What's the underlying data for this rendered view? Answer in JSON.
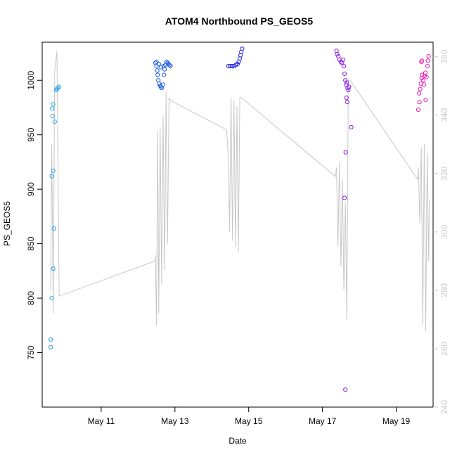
{
  "chart_data": {
    "type": "scatter",
    "title": "ATOM4 Northbound PS_GEOS5",
    "xlabel": "Date",
    "ylabel": "PS_GEOS5",
    "x_unit": "days of May (day number)",
    "xlim": [
      9.4,
      20.0
    ],
    "ylim": [
      700,
      1035
    ],
    "y2lim": [
      240,
      365
    ],
    "x_ticks": [
      {
        "value": 11,
        "label": "May 11"
      },
      {
        "value": 13,
        "label": "May 13"
      },
      {
        "value": 15,
        "label": "May 15"
      },
      {
        "value": 17,
        "label": "May 17"
      },
      {
        "value": 19,
        "label": "May 19"
      }
    ],
    "y_ticks": [
      750,
      800,
      850,
      900,
      950,
      1000
    ],
    "y2_ticks": [
      240,
      260,
      280,
      300,
      320,
      340,
      360
    ],
    "grid": false,
    "colors": {
      "flight1": "#29a6e6",
      "flight2": "#1f5fe0",
      "flight3": "#2626e0",
      "flight4": "#8a1ee6",
      "flight5": "#e61eb5",
      "line": "#c8c8c8",
      "right_axis": "#c8c8c8"
    },
    "series": [
      {
        "flight": 1,
        "points": [
          [
            9.63,
            755
          ],
          [
            9.63,
            762
          ],
          [
            9.66,
            800
          ],
          [
            9.7,
            827
          ],
          [
            9.72,
            864
          ],
          [
            9.66,
            912
          ],
          [
            9.7,
            917
          ],
          [
            9.68,
            967
          ],
          [
            9.74,
            962
          ],
          [
            9.67,
            974
          ],
          [
            9.7,
            978
          ],
          [
            9.78,
            991
          ],
          [
            9.8,
            992
          ],
          [
            9.82,
            993
          ],
          [
            9.86,
            994
          ]
        ]
      },
      {
        "flight": 2,
        "points": [
          [
            12.47,
            1016
          ],
          [
            12.5,
            1013
          ],
          [
            12.52,
            1009
          ],
          [
            12.53,
            1005
          ],
          [
            12.55,
            1000
          ],
          [
            12.57,
            997
          ],
          [
            12.6,
            995
          ],
          [
            12.62,
            994
          ],
          [
            12.64,
            993
          ],
          [
            12.68,
            996
          ],
          [
            12.7,
            1005
          ],
          [
            12.72,
            1010
          ],
          [
            12.74,
            1014
          ],
          [
            12.77,
            1017
          ],
          [
            12.8,
            1016
          ],
          [
            12.82,
            1015
          ],
          [
            12.85,
            1014
          ],
          [
            12.88,
            1013
          ],
          [
            12.5,
            1017
          ],
          [
            12.56,
            1015
          ],
          [
            12.62,
            1012
          ],
          [
            12.69,
            1013
          ]
        ]
      },
      {
        "flight": 3,
        "points": [
          [
            14.45,
            1013
          ],
          [
            14.5,
            1013
          ],
          [
            14.55,
            1013
          ],
          [
            14.6,
            1013
          ],
          [
            14.65,
            1014
          ],
          [
            14.7,
            1015
          ],
          [
            14.73,
            1017
          ],
          [
            14.76,
            1020
          ],
          [
            14.78,
            1023
          ],
          [
            14.8,
            1026
          ],
          [
            14.82,
            1029
          ]
        ]
      },
      {
        "flight": 4,
        "points": [
          [
            17.38,
            1027
          ],
          [
            17.4,
            1024
          ],
          [
            17.43,
            1022
          ],
          [
            17.46,
            1019
          ],
          [
            17.5,
            1017
          ],
          [
            17.53,
            1016
          ],
          [
            17.56,
            1019
          ],
          [
            17.58,
            1013
          ],
          [
            17.6,
            1006
          ],
          [
            17.62,
            1000
          ],
          [
            17.64,
            996
          ],
          [
            17.66,
            998
          ],
          [
            17.68,
            993
          ],
          [
            17.7,
            991
          ],
          [
            17.72,
            994
          ],
          [
            17.65,
            984
          ],
          [
            17.67,
            980
          ],
          [
            17.63,
            934
          ],
          [
            17.6,
            892
          ],
          [
            17.62,
            716
          ],
          [
            17.78,
            957
          ]
        ]
      },
      {
        "flight": 5,
        "points": [
          [
            19.6,
            973
          ],
          [
            19.63,
            980
          ],
          [
            19.62,
            988
          ],
          [
            19.65,
            992
          ],
          [
            19.67,
            997
          ],
          [
            19.69,
            1002
          ],
          [
            19.7,
            1005
          ],
          [
            19.73,
            1000
          ],
          [
            19.75,
            996
          ],
          [
            19.77,
            1004
          ],
          [
            19.79,
            1007
          ],
          [
            19.82,
            1003
          ],
          [
            19.85,
            1013
          ],
          [
            19.86,
            1018
          ],
          [
            19.88,
            1022
          ],
          [
            19.68,
            1017
          ],
          [
            19.7,
            1018
          ],
          [
            19.8,
            982
          ]
        ]
      }
    ],
    "line_series": {
      "axis": "right",
      "points": [
        [
          9.63,
          280
        ],
        [
          9.66,
          330
        ],
        [
          9.7,
          272
        ],
        [
          9.74,
          355
        ],
        [
          9.8,
          362
        ],
        [
          9.86,
          278
        ],
        [
          12.45,
          290
        ],
        [
          12.47,
          292
        ],
        [
          12.5,
          268
        ],
        [
          12.53,
          335
        ],
        [
          12.56,
          272
        ],
        [
          12.6,
          336
        ],
        [
          12.64,
          282
        ],
        [
          12.68,
          340
        ],
        [
          12.72,
          287
        ],
        [
          12.76,
          348
        ],
        [
          12.8,
          296
        ],
        [
          12.84,
          346
        ],
        [
          12.88,
          345
        ],
        [
          14.4,
          335
        ],
        [
          14.45,
          325
        ],
        [
          14.48,
          300
        ],
        [
          14.52,
          346
        ],
        [
          14.56,
          297
        ],
        [
          14.6,
          345
        ],
        [
          14.64,
          295
        ],
        [
          14.68,
          343
        ],
        [
          14.72,
          293
        ],
        [
          14.76,
          346
        ],
        [
          14.8,
          346
        ],
        [
          17.35,
          319
        ],
        [
          17.38,
          322
        ],
        [
          17.42,
          295
        ],
        [
          17.46,
          324
        ],
        [
          17.5,
          288
        ],
        [
          17.54,
          318
        ],
        [
          17.58,
          280
        ],
        [
          17.62,
          310
        ],
        [
          17.66,
          270
        ],
        [
          17.7,
          352
        ],
        [
          17.75,
          352
        ],
        [
          19.58,
          318
        ],
        [
          19.6,
          322
        ],
        [
          19.64,
          303
        ],
        [
          19.68,
          329
        ],
        [
          19.72,
          268
        ],
        [
          19.76,
          330
        ],
        [
          19.8,
          266
        ],
        [
          19.84,
          327
        ],
        [
          19.88,
          290
        ],
        [
          19.9,
          311
        ]
      ]
    }
  }
}
